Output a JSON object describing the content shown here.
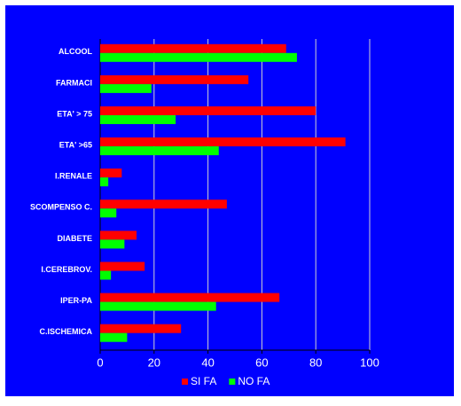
{
  "chart_data": {
    "type": "hbar",
    "categories": [
      "ALCOOL",
      "FARMACI",
      "ETA' > 75",
      "ETA' >65",
      "I.RENALE",
      "SCOMPENSO C.",
      "DIABETE",
      "I.CEREBROV.",
      "IPER-PA",
      "C.ISCHEMICA"
    ],
    "series": [
      {
        "name": "SI FA",
        "color": "#ff0000",
        "values": [
          69,
          55,
          80,
          91,
          8,
          47,
          13.5,
          16.5,
          66.5,
          30
        ]
      },
      {
        "name": "NO FA",
        "color": "#00ff00",
        "values": [
          73,
          19,
          28,
          44,
          3,
          6,
          9,
          4,
          43,
          10
        ]
      }
    ],
    "xlim": [
      0,
      100
    ],
    "xticks": [
      0,
      20,
      40,
      60,
      80,
      100
    ],
    "grid": true,
    "legend": "bottom"
  }
}
